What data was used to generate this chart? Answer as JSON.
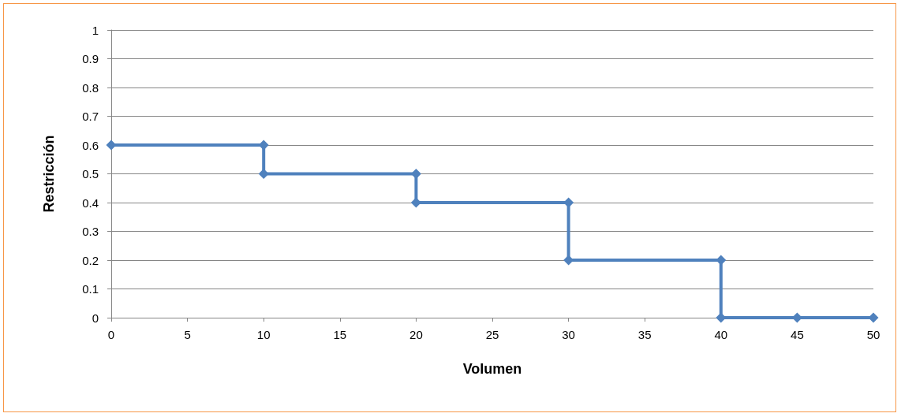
{
  "chart_data": {
    "type": "line",
    "xlabel": "Volumen",
    "ylabel": "Restricción",
    "x": [
      0,
      10,
      10,
      20,
      20,
      30,
      30,
      40,
      40,
      45,
      50
    ],
    "series": [
      {
        "color": "#4f81bd",
        "values": [
          0.6,
          0.6,
          0.5,
          0.5,
          0.4,
          0.4,
          0.2,
          0.2,
          0,
          0,
          0
        ]
      }
    ],
    "xlim": [
      0,
      50
    ],
    "xticks": [
      0,
      5,
      10,
      15,
      20,
      25,
      30,
      35,
      40,
      45,
      50
    ],
    "ylim": [
      0,
      1
    ],
    "yticks": [
      0,
      0.1,
      0.2,
      0.3,
      0.4,
      0.5,
      0.6,
      0.7,
      0.8,
      0.9,
      1
    ],
    "grid": "y",
    "marker": "diamond",
    "line_style": "solid"
  }
}
